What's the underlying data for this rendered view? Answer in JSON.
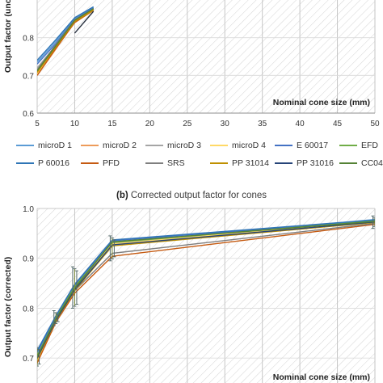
{
  "legend": [
    {
      "name": "microD 1",
      "color": "#5b9bd5"
    },
    {
      "name": "microD 2",
      "color": "#ed9b5a"
    },
    {
      "name": "microD 3",
      "color": "#a5a5a5"
    },
    {
      "name": "microD 4",
      "color": "#ffd966"
    },
    {
      "name": "E 60017",
      "color": "#4472c4"
    },
    {
      "name": "EFD",
      "color": "#70ad47"
    },
    {
      "name": "P 60016",
      "color": "#2e75b6"
    },
    {
      "name": "PFD",
      "color": "#c55a11"
    },
    {
      "name": "SRS",
      "color": "#7f7f7f"
    },
    {
      "name": "PP 31014",
      "color": "#bf9000"
    },
    {
      "name": "PP 31016",
      "color": "#264478"
    },
    {
      "name": "CC04",
      "color": "#548235"
    }
  ],
  "panel_b_title": {
    "label": "(b)",
    "text": "Corrected output factor for cones"
  },
  "chart_data": [
    {
      "type": "line",
      "panel": "a",
      "title": "",
      "xlabel": "Nominal cone size (mm)",
      "ylabel": "Output factor (unc",
      "xlim": [
        5,
        50
      ],
      "ylim": [
        0.6,
        0.9
      ],
      "x_ticks": [
        "5",
        "10",
        "15",
        "20",
        "25",
        "30",
        "35",
        "40",
        "45",
        "50"
      ],
      "y_ticks": [
        "0.6",
        "0.7",
        "0.8"
      ],
      "grid": "vertical",
      "background": "diagonal-hatch",
      "x": [
        5,
        7.5,
        10,
        12.5
      ],
      "series": [
        {
          "name": "microD 1",
          "values": [
            0.735,
            0.79,
            0.85,
            0.88
          ]
        },
        {
          "name": "microD 2",
          "values": [
            0.7,
            0.77,
            0.842,
            0.875
          ]
        },
        {
          "name": "microD 3",
          "values": [
            0.72,
            0.78,
            0.846,
            0.878
          ]
        },
        {
          "name": "microD 4",
          "values": [
            0.705,
            0.775,
            0.84,
            0.872
          ]
        },
        {
          "name": "E 60017",
          "values": [
            0.73,
            0.785,
            0.848,
            0.879
          ]
        },
        {
          "name": "EFD",
          "values": [
            0.71,
            0.78,
            0.845,
            0.876
          ]
        },
        {
          "name": "P 60016",
          "values": [
            0.74,
            0.795,
            0.853,
            0.882
          ]
        },
        {
          "name": "PFD",
          "values": [
            0.7,
            0.772,
            0.84,
            0.873
          ]
        },
        {
          "name": "SRS",
          "values": [
            0.715,
            0.782,
            0.847,
            0.877
          ]
        },
        {
          "name": "PP 31014",
          "values": [
            0.708,
            0.776,
            0.843,
            0.874
          ]
        },
        {
          "name": "PP 31016",
          "values": [
            null,
            null,
            0.812,
            0.87
          ]
        },
        {
          "name": "CC04",
          "values": [
            0.712,
            0.779,
            0.846,
            0.877
          ]
        }
      ]
    },
    {
      "type": "line",
      "panel": "b",
      "title": "(b) Corrected output factor for cones",
      "xlabel": "Nominal cone size (mm)",
      "ylabel": "Output factor (corrected)",
      "xlim": [
        5,
        50
      ],
      "ylim": [
        0.65,
        1.0
      ],
      "y_ticks": [
        "0.7",
        "0.8",
        "0.9",
        "1.0"
      ],
      "grid": "vertical",
      "background": "diagonal-hatch",
      "x": [
        5,
        7.5,
        10,
        15,
        50
      ],
      "series": [
        {
          "name": "microD 1",
          "values": [
            0.71,
            0.78,
            0.843,
            0.93,
            0.978
          ]
        },
        {
          "name": "microD 2",
          "values": [
            0.69,
            0.775,
            0.835,
            0.928,
            0.975
          ]
        },
        {
          "name": "microD 3",
          "values": [
            0.7,
            0.778,
            0.84,
            0.931,
            0.976
          ]
        },
        {
          "name": "microD 4",
          "values": [
            0.695,
            0.776,
            0.838,
            0.929,
            0.974
          ]
        },
        {
          "name": "E 60017",
          "values": [
            0.712,
            0.782,
            0.846,
            0.935,
            0.976
          ]
        },
        {
          "name": "EFD",
          "values": [
            0.705,
            0.78,
            0.843,
            0.932,
            0.975
          ]
        },
        {
          "name": "P 60016",
          "values": [
            0.715,
            0.785,
            0.848,
            0.937,
            0.977
          ]
        },
        {
          "name": "PFD",
          "values": [
            0.69,
            0.772,
            0.83,
            0.904,
            0.968
          ]
        },
        {
          "name": "SRS",
          "values": [
            0.7,
            0.775,
            0.835,
            0.91,
            0.97
          ]
        },
        {
          "name": "PP 31014",
          "values": [
            0.698,
            0.775,
            0.835,
            0.925,
            0.972
          ]
        },
        {
          "name": "PP 31016",
          "values": [
            0.7,
            0.776,
            0.837,
            0.927,
            0.973
          ]
        },
        {
          "name": "CC04",
          "values": [
            0.703,
            0.779,
            0.84,
            0.933,
            0.974
          ]
        }
      ],
      "error_bars": [
        {
          "x": 5,
          "low": 0.68,
          "high": 0.725
        },
        {
          "x": 7.5,
          "low": 0.765,
          "high": 0.795
        },
        {
          "x": 10,
          "low": 0.8,
          "high": 0.883
        },
        {
          "x": 15,
          "low": 0.895,
          "high": 0.945
        },
        {
          "x": 50,
          "low": 0.96,
          "high": 0.985
        }
      ]
    }
  ]
}
